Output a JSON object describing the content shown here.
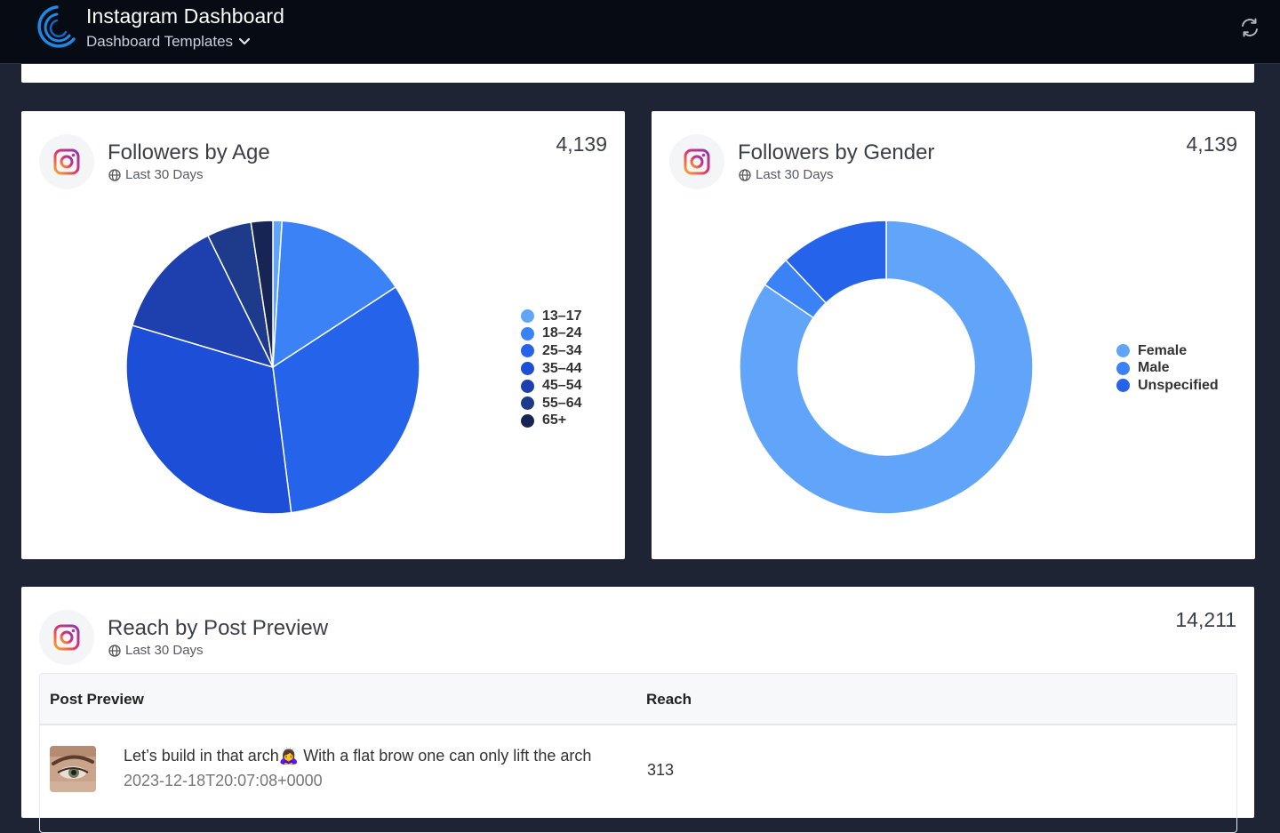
{
  "header": {
    "title": "Instagram Dashboard",
    "subnav_label": "Dashboard Templates"
  },
  "cards": {
    "age": {
      "title": "Followers by Age",
      "subtitle": "Last 30 Days",
      "total": "4,139"
    },
    "gender": {
      "title": "Followers by Gender",
      "subtitle": "Last 30 Days",
      "total": "4,139"
    },
    "reach": {
      "title": "Reach by Post Preview",
      "subtitle": "Last 30 Days",
      "total": "14,211",
      "columns": [
        "Post Preview",
        "Reach"
      ],
      "rows": [
        {
          "text": "Let’s build in that arch🙇‍♀️ With a flat brow one can only lift the arch",
          "date": "2023-12-18T20:07:08+0000",
          "reach": "313"
        }
      ]
    }
  },
  "chart_data": [
    {
      "type": "pie",
      "categories": [
        "13–17",
        "18–24",
        "25–34",
        "35–44",
        "45–54",
        "55–64",
        "65+"
      ],
      "values": [
        1.0,
        14.8,
        32.2,
        31.6,
        13.1,
        4.9,
        2.4
      ],
      "colors": [
        "#60a5fa",
        "#3b82f6",
        "#2563eb",
        "#1d4ed8",
        "#1e40af",
        "#1e3a8a",
        "#172554"
      ],
      "legend": "right"
    },
    {
      "type": "pie",
      "donut": true,
      "categories": [
        "Female",
        "Male",
        "Unspecified"
      ],
      "values": [
        84.5,
        3.5,
        12.0
      ],
      "colors": [
        "#60a5fa",
        "#3b82f6",
        "#2563eb"
      ],
      "legend": "right"
    }
  ]
}
